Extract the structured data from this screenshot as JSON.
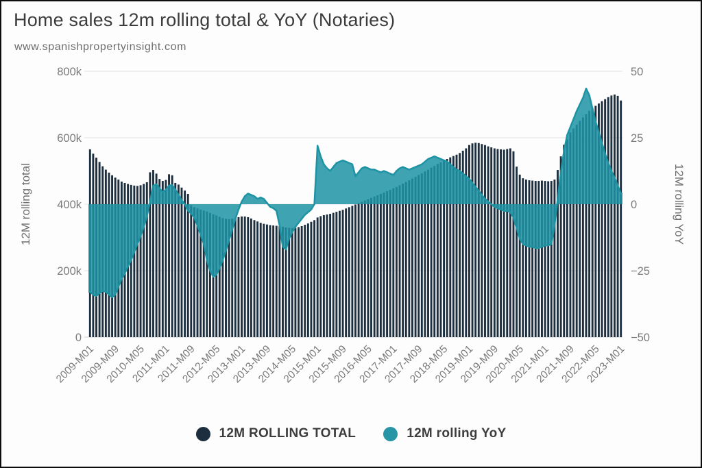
{
  "header": {
    "title": "Home sales 12m rolling total & YoY (Notaries)",
    "subtitle": "www.spanishpropertyinsight.com"
  },
  "legend": [
    {
      "label": "12M ROLLING TOTAL",
      "color": "#1d2f3e"
    },
    {
      "label": "12M rolling YoY",
      "color": "#2696a7"
    }
  ],
  "colors": {
    "background": "#fdfdfd",
    "frame_border": "#0d0d0d",
    "bar": "#1d2f3e",
    "yoy_line": "#1e93a4",
    "yoy_fill": "#1e93a4",
    "gridline": "#e4e4e4",
    "axis_line": "#d0d0d0",
    "tick_text": "#7a7a7a",
    "title_text": "#3c3c3c"
  },
  "chart_data": {
    "type": "combo",
    "title": "Home sales 12m rolling total & YoY (Notaries)",
    "x_start": "2009-M01",
    "x_end": "2023-M01",
    "x_frequency": "monthly",
    "x_tick_every": 8,
    "x_tick_labels": [
      "2009-M01",
      "2009-M09",
      "2010-M05",
      "2011-M01",
      "2011-M09",
      "2012-M05",
      "2013-M01",
      "2013-M09",
      "2014-M05",
      "2015-M01",
      "2015-M09",
      "2016-M05",
      "2017-M01",
      "2017-M09",
      "2018-M05",
      "2019-M01",
      "2019-M09",
      "2020-M05",
      "2021-M01",
      "2021-M09",
      "2022-M05",
      "2023-M01"
    ],
    "left_axis": {
      "label": "12M rolling total",
      "tick_values": [
        0,
        200,
        400,
        600,
        800
      ],
      "tick_labels": [
        "0",
        "200k",
        "400k",
        "600k",
        "800k"
      ],
      "range_thousands": [
        0,
        800
      ]
    },
    "right_axis": {
      "label": "12M rolling YoY",
      "tick_values": [
        -50,
        -25,
        0,
        25,
        50
      ],
      "tick_labels": [
        "−50",
        "−25",
        "0",
        "25",
        "50"
      ],
      "range": [
        -50,
        50
      ]
    },
    "grid": "horizontal-only",
    "legend_position": "bottom-center",
    "series": [
      {
        "name": "12M ROLLING TOTAL",
        "type": "bar",
        "axis": "left",
        "unit": "thousands of homes",
        "color": "#1d2f3e",
        "values": [
          565,
          552,
          540,
          527,
          514,
          504,
          495,
          487,
          480,
          474,
          468,
          464,
          461,
          458,
          456,
          455,
          457,
          461,
          466,
          496,
          503,
          492,
          476,
          470,
          473,
          490,
          487,
          464,
          459,
          450,
          441,
          431,
          397,
          391,
          387,
          384,
          381,
          378,
          374,
          370,
          366,
          362,
          358,
          356,
          355,
          356,
          359,
          361,
          363,
          363,
          361,
          357,
          352,
          348,
          344,
          341,
          339,
          337,
          336,
          335,
          334,
          332,
          330,
          329,
          328,
          329,
          331,
          334,
          338,
          342,
          347,
          352,
          360,
          364,
          367,
          369,
          371,
          374,
          377,
          380,
          383,
          387,
          391,
          395,
          399,
          403,
          407,
          411,
          415,
          419,
          423,
          427,
          431,
          435,
          439,
          443,
          448,
          452,
          457,
          462,
          467,
          472,
          477,
          482,
          488,
          493,
          499,
          504,
          510,
          515,
          521,
          526,
          531,
          536,
          541,
          545,
          549,
          554,
          561,
          568,
          578,
          583,
          585,
          584,
          581,
          578,
          574,
          571,
          568,
          566,
          565,
          564,
          566,
          568,
          559,
          513,
          489,
          478,
          474,
          472,
          471,
          470,
          470,
          471,
          470,
          469,
          470,
          474,
          503,
          544,
          579,
          596,
          616,
          628,
          639,
          651,
          661,
          671,
          681,
          689,
          696,
          703,
          710,
          716,
          722,
          727,
          730,
          726,
          712
        ]
      },
      {
        "name": "12M rolling YoY",
        "type": "area",
        "axis": "right",
        "unit": "percent",
        "color": "#1e93a4",
        "fill_opacity": 0.85,
        "values": [
          -33,
          -34,
          -34.5,
          -33.5,
          -32.5,
          -33,
          -34,
          -35,
          -34,
          -31,
          -28,
          -26,
          -23.5,
          -21,
          -18,
          -15,
          -12,
          -8.5,
          -4.5,
          1,
          7,
          7.5,
          6,
          4.5,
          5.5,
          7,
          7.2,
          5.5,
          3.5,
          1.5,
          0,
          -2.5,
          -3.5,
          -5,
          -8,
          -11.5,
          -15,
          -21,
          -25,
          -27.3,
          -26.5,
          -24,
          -21,
          -17.5,
          -13.5,
          -9.5,
          -5.5,
          -2,
          1,
          3,
          4,
          3.5,
          3,
          2,
          2.5,
          2,
          0.5,
          -1,
          -1.5,
          -2.5,
          -8,
          -16,
          -17,
          -13,
          -10.5,
          -8.5,
          -7,
          -5.5,
          -4,
          -3,
          -2,
          0,
          22,
          18,
          15,
          13.5,
          12.5,
          14,
          15.5,
          16,
          16.5,
          16,
          15.5,
          15,
          10.5,
          12,
          13.5,
          14,
          13.5,
          13,
          13,
          12.5,
          12,
          12.5,
          12,
          11.5,
          11,
          12.5,
          13.5,
          14,
          13.5,
          13,
          13.5,
          14,
          14.5,
          15,
          16,
          17,
          17.5,
          18,
          17.5,
          17,
          16.5,
          16,
          15,
          14,
          13,
          12.5,
          11.5,
          10.5,
          9.5,
          8,
          6.5,
          5,
          3.5,
          2,
          1,
          0,
          -1,
          -1.5,
          -2,
          -2.5,
          -2.5,
          -3,
          -5,
          -9,
          -13,
          -15,
          -15.5,
          -16,
          -16,
          -16.5,
          -16.5,
          -16,
          -15.5,
          -15.5,
          -15,
          -8,
          2,
          12,
          20,
          26,
          29,
          32,
          35,
          37.5,
          40,
          43.5,
          41,
          36,
          31,
          27,
          23,
          19,
          15.5,
          12.5,
          10,
          7,
          4
        ]
      }
    ]
  }
}
